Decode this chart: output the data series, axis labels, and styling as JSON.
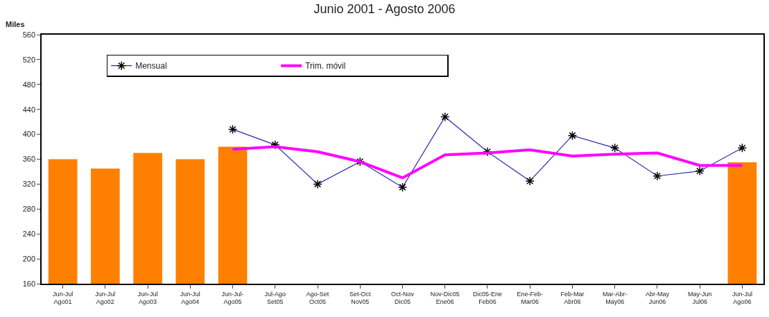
{
  "chart_data": {
    "type": "bar",
    "title": "Junio 2001 - Agosto 2006",
    "ylabel": "Miles",
    "categories": [
      "Jun-Jul\nAgo01",
      "Jun-Jul\nAgo02",
      "Jun-Jul\nAgo03",
      "Jun-Jul\nAgo04",
      "Jun-Jul-\nAgo05",
      "Jul-Ago\nSet05",
      "Ago-Set\nOct05",
      "Set-Oct\nNov05",
      "Oct-Nov\nDic05",
      "Nov-Dic05\nEne06",
      "Dic05-Ene\nFeb06",
      "Ene-Feb-\nMar06",
      "Feb-Mar\nAbr06",
      "Mar-Abr-\nMay06",
      "Abr-May\nJun06",
      "May-Jun\nJul06",
      "Jun-Jul\nAgo06"
    ],
    "series": [
      {
        "color": "#ff8000",
        "values": [
          360,
          345,
          370,
          360,
          380,
          null,
          null,
          null,
          null,
          null,
          null,
          null,
          null,
          null,
          null,
          null,
          355
        ]
      },
      {
        "type": "line",
        "name": "Mensual",
        "color": "#2a2aa8",
        "marker": "cross",
        "line_style": "solid",
        "values": [
          null,
          null,
          null,
          null,
          408,
          383,
          320,
          356,
          315,
          428,
          372,
          325,
          398,
          378,
          333,
          341,
          378
        ]
      },
      {
        "type": "line",
        "name": "Trim. móvil",
        "color": "#ff00ff",
        "marker": "none",
        "line_style": "solid",
        "values": [
          null,
          null,
          null,
          null,
          376,
          380,
          372,
          356,
          330,
          367,
          370,
          375,
          365,
          368,
          370,
          350,
          350
        ]
      }
    ],
    "ylim": [
      160,
      560
    ],
    "yticks": [
      160,
      200,
      240,
      280,
      320,
      360,
      400,
      440,
      480,
      520,
      560
    ],
    "grid": false,
    "legend": "top left"
  }
}
